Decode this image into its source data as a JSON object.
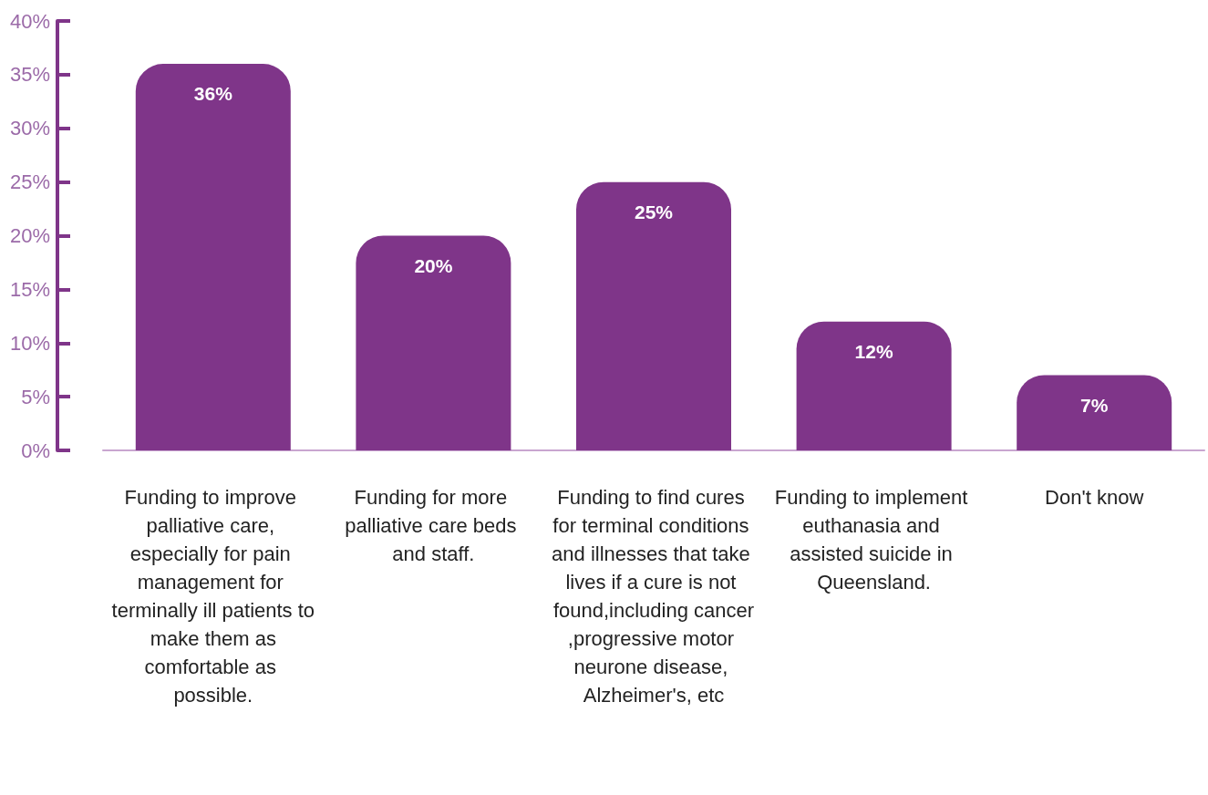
{
  "chart_data": {
    "type": "bar",
    "categories": [
      "Funding to improve palliative care, especially for pain management for terminally ill patients to make them as comfortable as possible.",
      "Funding for more palliative care beds and staff.",
      "Funding to find cures for terminal conditions and illnesses that take lives if a cure is not found,including cancer,progressive motor neurone disease, Alzheimer's, etc",
      "Funding to implement euthanasia and assisted suicide in Queensland.",
      "Don't know"
    ],
    "values": [
      36,
      20,
      25,
      12,
      7
    ],
    "value_labels": [
      "36%",
      "20%",
      "25%",
      "12%",
      "7%"
    ],
    "color": "#7f3589",
    "ylim": [
      0,
      40
    ],
    "yticks": [
      {
        "value": 0,
        "label": "0%"
      },
      {
        "value": 5,
        "label": "5%"
      },
      {
        "value": 10,
        "label": "10%"
      },
      {
        "value": 15,
        "label": "15%"
      },
      {
        "value": 20,
        "label": "20%"
      },
      {
        "value": 25,
        "label": "25%"
      },
      {
        "value": 30,
        "label": "30%"
      },
      {
        "value": 35,
        "label": "35%"
      },
      {
        "value": 40,
        "label": "40%"
      }
    ],
    "grid": false
  }
}
